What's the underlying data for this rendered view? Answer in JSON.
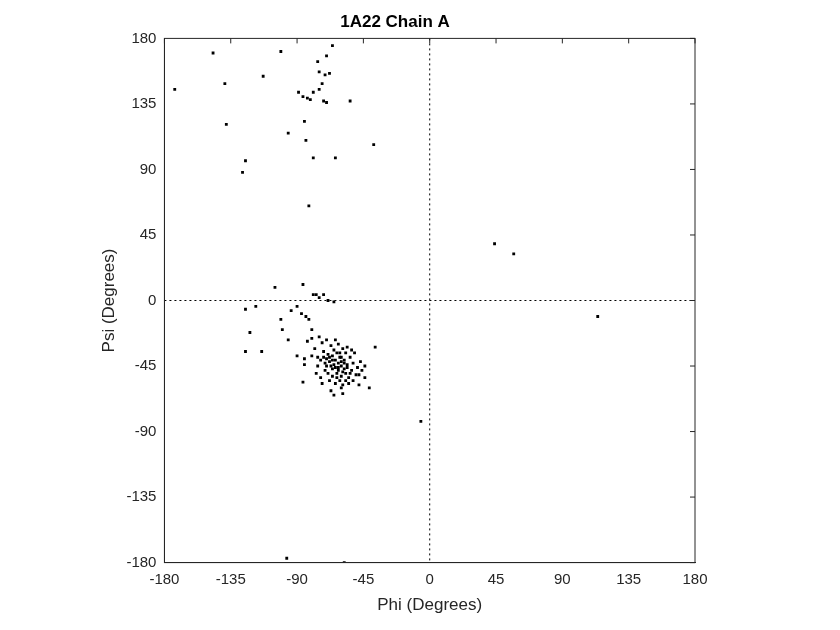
{
  "chart_data": {
    "type": "scatter",
    "title": "1A22 Chain A",
    "x_label": "Phi (Degrees)",
    "y_label": "Psi (Degrees)",
    "xlim": [
      -180,
      180
    ],
    "ylim": [
      -180,
      180
    ],
    "xticks": [
      -180,
      -135,
      -90,
      -45,
      0,
      45,
      90,
      135,
      180
    ],
    "yticks": [
      -180,
      -135,
      -90,
      -45,
      0,
      45,
      90,
      135,
      180
    ],
    "grid": false,
    "color": "#000000",
    "marker": "square",
    "x": [
      -173,
      -147,
      -139,
      -138,
      -125,
      -127,
      -113,
      -101,
      -96,
      -89,
      -86,
      -85,
      -84,
      -83,
      -81,
      -82,
      -79,
      -79,
      -76,
      -75,
      -75,
      -73,
      -72,
      -71,
      -70,
      -68,
      -66,
      -70,
      -64,
      -54,
      -38,
      44,
      57,
      114,
      -6,
      -97,
      -58,
      -125,
      -122,
      -125,
      -118,
      -114,
      -105,
      -101,
      -100,
      -96,
      -94,
      -90,
      -87,
      -86,
      -84,
      -85,
      -86,
      -82,
      -80,
      -79,
      -77,
      -75,
      -72,
      -69,
      -65,
      -37,
      -41,
      -44,
      -48,
      -65,
      -59,
      -90,
      -70,
      -68,
      -66,
      -64,
      -62,
      -60,
      -58,
      -56,
      -61,
      -63,
      -65,
      -67,
      -72,
      -74,
      -76,
      -71,
      -69,
      -66,
      -63,
      -60,
      -57,
      -55,
      -53,
      -52,
      -54,
      -57,
      -59,
      -62,
      -64,
      -70,
      -73,
      -78,
      -80,
      -77,
      -74,
      -68,
      -64,
      -59,
      -55,
      -50,
      -49,
      -47,
      -51,
      -58,
      -60,
      -62,
      -65,
      -67,
      -69,
      -71,
      -57,
      -61,
      -63,
      -66,
      -56,
      -58,
      -60,
      -62,
      -64,
      -66,
      -68,
      -70,
      -72,
      -54,
      -52,
      -48,
      -46,
      -44,
      -75,
      -80,
      -83,
      -85,
      -76,
      -59,
      -61,
      -56,
      -53,
      -60,
      -67,
      -73
    ],
    "values": [
      145,
      170,
      149,
      121,
      96,
      88,
      154,
      171,
      115,
      143,
      140,
      123,
      110,
      139,
      138,
      65,
      98,
      143,
      164,
      157,
      145,
      149,
      137,
      155,
      168,
      156,
      175,
      136,
      98,
      137,
      107,
      39,
      32,
      -11,
      -83,
      -177,
      -180,
      -6,
      -22,
      -35,
      -4,
      -35,
      9,
      -13,
      -20,
      -27,
      -7,
      -4,
      -9,
      11,
      -11,
      -40,
      -56,
      -13,
      -26,
      4,
      4,
      2,
      4,
      0,
      -1,
      -32,
      -60,
      -53,
      -51,
      -65,
      -64,
      -38,
      -40,
      -42,
      -38,
      -41,
      -43,
      -45,
      -47,
      -44,
      -39,
      -36,
      -34,
      -31,
      -35,
      -41,
      -45,
      -48,
      -50,
      -47,
      -50,
      -52,
      -50,
      -53,
      -48,
      -43,
      -39,
      -36,
      -33,
      -30,
      -27,
      -27,
      -29,
      -33,
      -38,
      -50,
      -53,
      -55,
      -57,
      -58,
      -57,
      -51,
      -46,
      -42,
      -36,
      -41,
      -42,
      -46,
      -44,
      -45,
      -37,
      -43,
      -55,
      -55,
      -53,
      -52,
      -46,
      -43,
      -39,
      -48,
      -46,
      -41,
      -39,
      -45,
      -39,
      -50,
      -55,
      -58,
      -48,
      -45,
      -25,
      -20,
      -28,
      -44,
      -39,
      -49,
      -36,
      -32,
      -34,
      -60,
      -62,
      -57
    ]
  }
}
